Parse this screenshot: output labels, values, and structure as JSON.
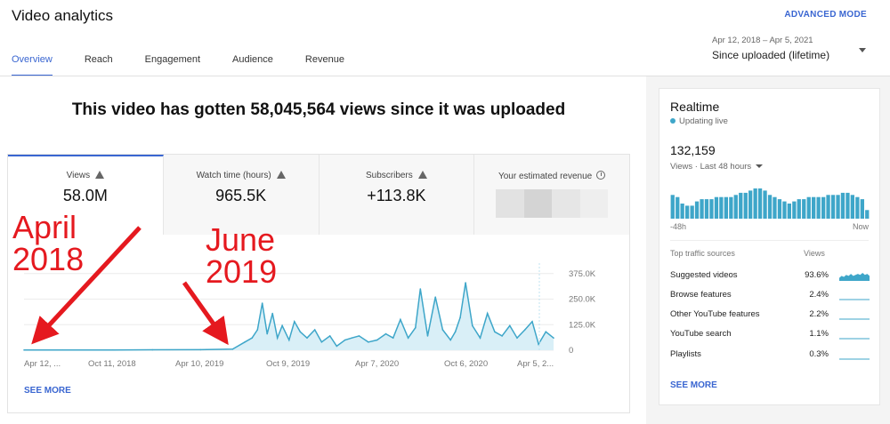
{
  "header": {
    "title": "Video analytics",
    "advanced_mode": "ADVANCED MODE",
    "tabs": [
      {
        "label": "Overview",
        "active": true
      },
      {
        "label": "Reach",
        "active": false
      },
      {
        "label": "Engagement",
        "active": false
      },
      {
        "label": "Audience",
        "active": false
      },
      {
        "label": "Revenue",
        "active": false
      }
    ],
    "date_range": {
      "sub": "Apr 12, 2018 – Apr 5, 2021",
      "main": "Since uploaded (lifetime)"
    }
  },
  "overview": {
    "headline": "This video has gotten 58,045,564 views since it was uploaded",
    "metrics": [
      {
        "label": "Views",
        "value": "58.0M",
        "icon": "warning-icon"
      },
      {
        "label": "Watch time (hours)",
        "value": "965.5K",
        "icon": "warning-icon"
      },
      {
        "label": "Subscribers",
        "value": "+113.8K",
        "icon": "warning-icon"
      },
      {
        "label": "Your estimated revenue",
        "value": "",
        "icon": "clock-icon"
      }
    ],
    "see_more": "SEE MORE"
  },
  "annotations": {
    "first": [
      "April",
      "2018"
    ],
    "second": [
      "June",
      "2019"
    ]
  },
  "colors": {
    "accent": "#3a66d1",
    "line": "#3ea6c9",
    "fill": "#d9eff7",
    "annotation": "#e5191f"
  },
  "chart_data": {
    "type": "area",
    "x_tick_labels": [
      "Apr 12, ...",
      "Oct 11, 2018",
      "Apr 10, 2019",
      "Oct 9, 2019",
      "Apr 7, 2020",
      "Oct 6, 2020",
      "Apr 5, 2..."
    ],
    "y_tick_labels": [
      "375.0K",
      "250.0K",
      "125.0K",
      "0"
    ],
    "ylim": [
      0,
      400000
    ],
    "x": [
      "2018-04-12",
      "2018-07-01",
      "2018-10-11",
      "2019-01-01",
      "2019-04-10",
      "2019-06-15",
      "2019-07-10",
      "2019-07-25",
      "2019-08-05",
      "2019-08-15",
      "2019-08-25",
      "2019-09-05",
      "2019-09-15",
      "2019-09-25",
      "2019-10-09",
      "2019-10-20",
      "2019-11-01",
      "2019-11-15",
      "2019-12-01",
      "2019-12-15",
      "2020-01-01",
      "2020-01-15",
      "2020-02-01",
      "2020-02-15",
      "2020-03-01",
      "2020-03-20",
      "2020-04-07",
      "2020-04-25",
      "2020-05-10",
      "2020-05-25",
      "2020-06-10",
      "2020-06-25",
      "2020-07-05",
      "2020-07-20",
      "2020-08-05",
      "2020-08-20",
      "2020-09-05",
      "2020-09-15",
      "2020-09-25",
      "2020-10-06",
      "2020-10-20",
      "2020-11-05",
      "2020-11-20",
      "2020-12-05",
      "2020-12-20",
      "2021-01-05",
      "2021-01-20",
      "2021-02-05",
      "2021-02-20",
      "2021-03-05",
      "2021-03-20",
      "2021-04-05"
    ],
    "values": [
      1000,
      1500,
      1500,
      2000,
      2500,
      5000,
      40000,
      60000,
      100000,
      230000,
      80000,
      180000,
      60000,
      120000,
      50000,
      140000,
      90000,
      60000,
      100000,
      40000,
      70000,
      20000,
      50000,
      60000,
      70000,
      40000,
      50000,
      80000,
      60000,
      150000,
      60000,
      110000,
      300000,
      70000,
      260000,
      100000,
      50000,
      90000,
      160000,
      330000,
      120000,
      60000,
      180000,
      90000,
      70000,
      120000,
      60000,
      100000,
      140000,
      30000,
      90000,
      60000
    ]
  },
  "realtime": {
    "title": "Realtime",
    "status": "Updating live",
    "count": "132,159",
    "period": "Views · Last 48 hours",
    "axis_left": "-48h",
    "axis_right": "Now",
    "bars": [
      22,
      20,
      14,
      12,
      12,
      16,
      18,
      18,
      18,
      20,
      20,
      20,
      20,
      22,
      24,
      24,
      26,
      28,
      28,
      26,
      22,
      20,
      18,
      16,
      14,
      16,
      18,
      18,
      20,
      20,
      20,
      20,
      22,
      22,
      22,
      24,
      24,
      22,
      20,
      18,
      8
    ],
    "sources_header": {
      "label": "Top traffic sources",
      "views": "Views"
    },
    "sources": [
      {
        "label": "Suggested videos",
        "pct": "93.6%",
        "spark": [
          3,
          5,
          4,
          6,
          5,
          7,
          5,
          6,
          7,
          6,
          8,
          6,
          7,
          5
        ]
      },
      {
        "label": "Browse features",
        "pct": "2.4%",
        "spark": []
      },
      {
        "label": "Other YouTube features",
        "pct": "2.2%",
        "spark": []
      },
      {
        "label": "YouTube search",
        "pct": "1.1%",
        "spark": []
      },
      {
        "label": "Playlists",
        "pct": "0.3%",
        "spark": []
      }
    ],
    "see_more": "SEE MORE"
  }
}
